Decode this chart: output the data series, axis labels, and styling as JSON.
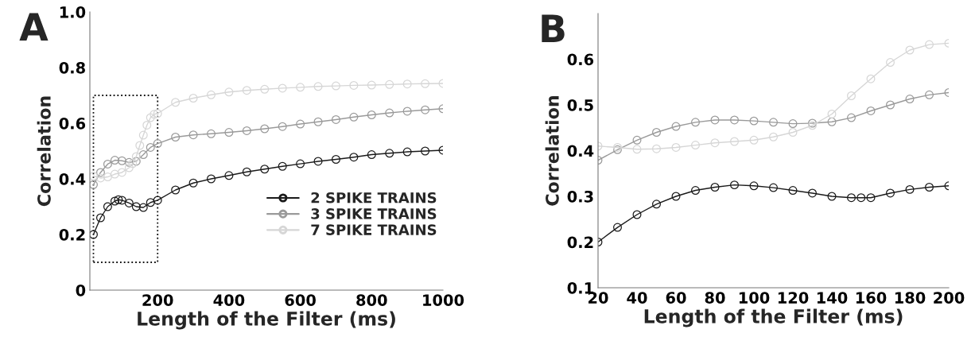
{
  "chart_data": [
    {
      "type": "line",
      "title": "A",
      "xlabel": "Length of the Filter (ms)",
      "ylabel": "Correlation",
      "xlim": [
        10,
        1000
      ],
      "xticks": [
        200,
        400,
        600,
        800,
        1000
      ],
      "ylim": [
        0,
        1.0
      ],
      "yticks": [
        0,
        0.2,
        0.4,
        0.6,
        0.8,
        {
          "value": 1.0,
          "label": "1.0"
        }
      ],
      "marker": "circle",
      "legend": "right",
      "grid": false,
      "series": [
        {
          "name": "2 SPIKE TRAINS",
          "color": "#1a1a1a",
          "x": [
            20,
            40,
            60,
            80,
            90,
            100,
            120,
            140,
            160,
            180,
            200,
            250,
            300,
            350,
            400,
            450,
            500,
            550,
            600,
            650,
            700,
            750,
            800,
            850,
            900,
            950,
            1000
          ],
          "values": [
            0.2,
            0.26,
            0.3,
            0.32,
            0.325,
            0.323,
            0.313,
            0.3,
            0.297,
            0.315,
            0.323,
            0.36,
            0.385,
            0.4,
            0.412,
            0.425,
            0.435,
            0.445,
            0.454,
            0.463,
            0.47,
            0.478,
            0.487,
            0.492,
            0.497,
            0.5,
            0.503
          ]
        },
        {
          "name": "3 SPIKE TRAINS",
          "color": "#9a9a9a",
          "x": [
            20,
            40,
            60,
            80,
            100,
            120,
            140,
            160,
            180,
            200,
            250,
            300,
            350,
            400,
            450,
            500,
            550,
            600,
            650,
            700,
            750,
            800,
            850,
            900,
            950,
            1000
          ],
          "values": [
            0.379,
            0.423,
            0.453,
            0.467,
            0.465,
            0.459,
            0.463,
            0.487,
            0.513,
            0.527,
            0.55,
            0.558,
            0.562,
            0.567,
            0.573,
            0.58,
            0.588,
            0.597,
            0.605,
            0.613,
            0.622,
            0.63,
            0.637,
            0.643,
            0.648,
            0.652
          ]
        },
        {
          "name": "7 SPIKE TRAINS",
          "color": "#d6d6d6",
          "x": [
            20,
            40,
            60,
            80,
            100,
            120,
            130,
            140,
            150,
            160,
            170,
            180,
            190,
            200,
            250,
            300,
            350,
            400,
            450,
            500,
            550,
            600,
            650,
            700,
            750,
            800,
            850,
            900,
            950,
            1000
          ],
          "values": [
            0.41,
            0.403,
            0.407,
            0.417,
            0.423,
            0.44,
            0.455,
            0.48,
            0.52,
            0.557,
            0.593,
            0.62,
            0.632,
            0.635,
            0.675,
            0.69,
            0.702,
            0.712,
            0.718,
            0.722,
            0.726,
            0.729,
            0.732,
            0.734,
            0.736,
            0.737,
            0.739,
            0.741,
            0.742,
            0.743
          ]
        }
      ]
    },
    {
      "type": "line",
      "title": "B",
      "xlabel": "Length of the Filter (ms)",
      "ylabel": "Correlation",
      "xlim": [
        20,
        200
      ],
      "xticks": [
        20,
        40,
        60,
        80,
        100,
        120,
        140,
        160,
        180,
        200
      ],
      "ylim": [
        0.1,
        0.7
      ],
      "yticks": [
        0.1,
        0.2,
        0.3,
        0.4,
        0.5,
        0.6
      ],
      "marker": "circle",
      "grid": false,
      "series": [
        {
          "color": "#1a1a1a",
          "x": [
            20,
            30,
            40,
            50,
            60,
            70,
            80,
            90,
            100,
            110,
            120,
            130,
            140,
            150,
            155,
            160,
            170,
            180,
            190,
            200
          ],
          "values": [
            0.2,
            0.232,
            0.26,
            0.283,
            0.3,
            0.313,
            0.32,
            0.325,
            0.323,
            0.319,
            0.313,
            0.307,
            0.3,
            0.297,
            0.297,
            0.297,
            0.307,
            0.315,
            0.32,
            0.323
          ]
        },
        {
          "color": "#9a9a9a",
          "x": [
            20,
            30,
            40,
            50,
            60,
            70,
            80,
            90,
            100,
            110,
            120,
            130,
            140,
            150,
            160,
            170,
            180,
            190,
            200
          ],
          "values": [
            0.379,
            0.402,
            0.423,
            0.44,
            0.453,
            0.462,
            0.467,
            0.467,
            0.465,
            0.462,
            0.459,
            0.46,
            0.463,
            0.472,
            0.487,
            0.5,
            0.513,
            0.522,
            0.527
          ]
        },
        {
          "color": "#d6d6d6",
          "x": [
            20,
            30,
            40,
            50,
            60,
            70,
            80,
            90,
            100,
            110,
            120,
            130,
            140,
            150,
            160,
            170,
            180,
            190,
            200
          ],
          "values": [
            0.41,
            0.407,
            0.403,
            0.404,
            0.407,
            0.412,
            0.417,
            0.42,
            0.423,
            0.43,
            0.44,
            0.455,
            0.48,
            0.52,
            0.557,
            0.593,
            0.62,
            0.632,
            0.635
          ]
        }
      ]
    }
  ]
}
